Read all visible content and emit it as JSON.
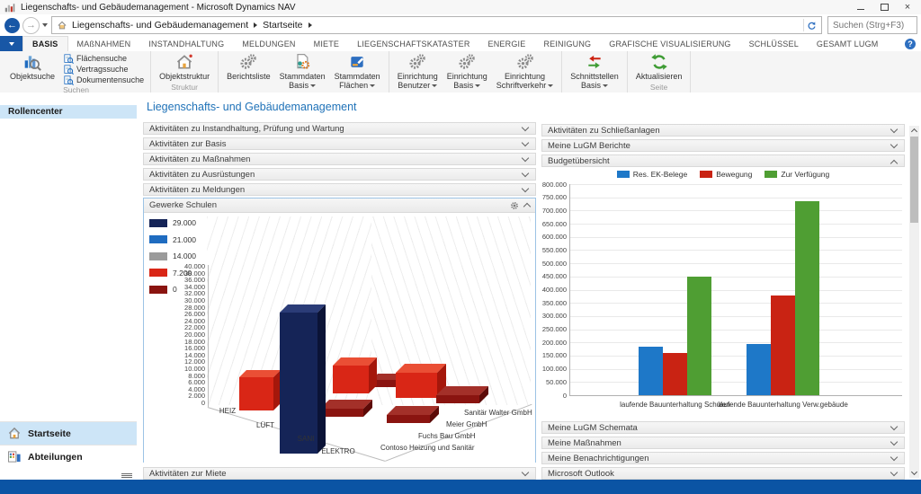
{
  "window": {
    "title": "Liegenschafts- und Gebäudemanagement - Microsoft Dynamics NAV"
  },
  "icons": {
    "back": "←",
    "forward": "→",
    "close": "×"
  },
  "nav": {
    "breadcrumb": [
      "Liegenschafts- und Gebäudemanagement",
      "Startseite"
    ],
    "search_placeholder": "Suchen (Strg+F3)",
    "help_label": "?"
  },
  "ribbon": {
    "selected_tab": "BASIS",
    "tabs": [
      "BASIS",
      "MAßNAHMEN",
      "INSTANDHALTUNG",
      "MELDUNGEN",
      "MIETE",
      "LIEGENSCHAFTSKATASTER",
      "ENERGIE",
      "REINIGUNG",
      "GRAFISCHE VISUALISIERUNG",
      "SCHLÜSSEL",
      "GESAMT LUGM"
    ],
    "groups": [
      {
        "label": "Suchen",
        "large": [
          {
            "label": "Objektsuche",
            "icon": "chart-search"
          }
        ],
        "small": [
          {
            "label": "Flächensuche",
            "icon": "search-doc"
          },
          {
            "label": "Vertragssuche",
            "icon": "search-doc"
          },
          {
            "label": "Dokumentensuche",
            "icon": "search-doc"
          }
        ]
      },
      {
        "label": "Struktur",
        "large": [
          {
            "label": "Objektstruktur",
            "icon": "house"
          }
        ]
      },
      {
        "label": "Stammdaten",
        "large": [
          {
            "label": "Berichtsliste",
            "icon": "gears"
          },
          {
            "label": "Stammdaten",
            "sublabel": "Basis",
            "caret": true,
            "icon": "doc-gear"
          },
          {
            "label": "Stammdaten",
            "sublabel": "Flächen",
            "caret": true,
            "icon": "cube"
          }
        ]
      },
      {
        "label": "Einrichtung",
        "large": [
          {
            "label": "Einrichtung",
            "sublabel": "Benutzer",
            "caret": true,
            "icon": "gears"
          },
          {
            "label": "Einrichtung",
            "sublabel": "Basis",
            "caret": true,
            "icon": "gears"
          },
          {
            "label": "Einrichtung",
            "sublabel": "Schriftverkehr",
            "caret": true,
            "icon": "gears"
          }
        ]
      },
      {
        "label": "Schnittstellen",
        "large": [
          {
            "label": "Schnittstellen",
            "sublabel": "Basis",
            "caret": true,
            "icon": "sync-arrows"
          }
        ]
      },
      {
        "label": "Seite",
        "large": [
          {
            "label": "Aktualisieren",
            "icon": "refresh"
          }
        ]
      }
    ]
  },
  "sidebar": {
    "header": "Rollencenter",
    "items": [
      {
        "label": "Startseite",
        "icon": "home-house",
        "selected": true
      },
      {
        "label": "Abteilungen",
        "icon": "departments",
        "selected": false
      }
    ]
  },
  "main": {
    "title": "Liegenschafts- und Gebäudemanagement",
    "left_sections": [
      "Aktivitäten zu Instandhaltung, Prüfung und Wartung",
      "Aktivitäten zur Basis",
      "Aktivitäten zu Maßnahmen",
      "Aktivitäten zu Ausrüstungen",
      "Aktivitäten zu Meldungen"
    ],
    "left_bottom_section": "Aktivitäten zur Miete",
    "right_sections_top": [
      "Aktivitäten zu Schließanlagen",
      "Meine LuGM Berichte"
    ],
    "budget_section_title": "Budgetübersicht",
    "right_sections_bottom": [
      "Meine LuGM Schemata",
      "Meine Maßnahmen",
      "Meine Benachrichtigungen",
      "Microsoft Outlook"
    ]
  },
  "chart_data": [
    {
      "type": "bar",
      "projection": "3d",
      "title": "Gewerke Schulen",
      "ylim": [
        0,
        40000
      ],
      "ytick_step": 2000,
      "categories": [
        "HEIZ",
        "LÜFT",
        "SANI",
        "ELEKTRO"
      ],
      "depth_labels": [
        "Contoso Heizung und Sanitär",
        "Fuchs Bau GmbH",
        "Meier GmbH",
        "Sanitär Walter GmbH"
      ],
      "legend": [
        {
          "label": "29.000",
          "key": "navy"
        },
        {
          "label": "21.000",
          "key": "blue"
        },
        {
          "label": "14.000",
          "key": "gray"
        },
        {
          "label": "7.200",
          "key": "red"
        },
        {
          "label": "0",
          "key": "darkred"
        }
      ],
      "palette": {
        "navy": {
          "f": "#152457",
          "t": "#2b3c77",
          "s": "#0b1336"
        },
        "blue": {
          "f": "#1f6cc0",
          "t": "#3f88d4",
          "s": "#15509a"
        },
        "gray": {
          "f": "#9b9b9b",
          "t": "#b5b5b5",
          "s": "#7d7d7d"
        },
        "red": {
          "f": "#d92616",
          "t": "#ea4f35",
          "s": "#a5170b"
        },
        "darkred": {
          "f": "#8a1410",
          "t": "#a33029",
          "s": "#5c0a07"
        }
      },
      "bars": [
        {
          "value": 0,
          "key": "darkred",
          "x": 253,
          "y": 186,
          "w": 30,
          "h": 8
        },
        {
          "value": 7200,
          "key": "red",
          "x": 210,
          "y": 170,
          "w": 40,
          "h": 31
        },
        {
          "value": 7200,
          "key": "red",
          "x": 280,
          "y": 178,
          "w": 46,
          "h": 28
        },
        {
          "value": 0,
          "key": "darkred",
          "x": 325,
          "y": 203,
          "w": 48,
          "h": 9
        },
        {
          "value": 7200,
          "key": "red",
          "x": 106,
          "y": 183,
          "w": 38,
          "h": 37
        },
        {
          "value": 0,
          "key": "darkred",
          "x": 196,
          "y": 218,
          "w": 48,
          "h": 9
        },
        {
          "value": 0,
          "key": "darkred",
          "x": 270,
          "y": 225,
          "w": 48,
          "h": 9
        },
        {
          "value": 29000,
          "key": "navy",
          "x": 151,
          "y": 111,
          "w": 42,
          "h": 157
        }
      ],
      "category_pos": [
        {
          "label": "HEIZ",
          "x": 93,
          "y": 216
        },
        {
          "label": "LÜFT",
          "x": 135,
          "y": 232
        },
        {
          "label": "SANI",
          "x": 180,
          "y": 247
        },
        {
          "label": "ELEKTRO",
          "x": 216,
          "y": 261
        }
      ],
      "depth_pos": [
        {
          "label": "Contoso Heizung und Sanitär",
          "x": 263,
          "y": 257
        },
        {
          "label": "Fuchs Bau GmbH",
          "x": 305,
          "y": 244
        },
        {
          "label": "Meier GmbH",
          "x": 336,
          "y": 231
        },
        {
          "label": "Sanitär Walter GmbH",
          "x": 356,
          "y": 218
        }
      ]
    },
    {
      "type": "bar",
      "title": "Budgetübersicht",
      "ylim": [
        0,
        800000
      ],
      "ytick_step": 50000,
      "grid": true,
      "legend_position": "top",
      "categories": [
        "laufende Bauunterhaltung Schulen",
        "laufende Bauunterhaltung Verw.gebäude"
      ],
      "series": [
        {
          "name": "Res. EK-Belege",
          "color": "#1e78c8",
          "values": [
            185000,
            195000
          ]
        },
        {
          "name": "Bewegung",
          "color": "#c92313",
          "values": [
            160000,
            378000
          ]
        },
        {
          "name": "Zur Verfügung",
          "color": "#4f9e33",
          "values": [
            450000,
            735000
          ]
        }
      ]
    }
  ]
}
